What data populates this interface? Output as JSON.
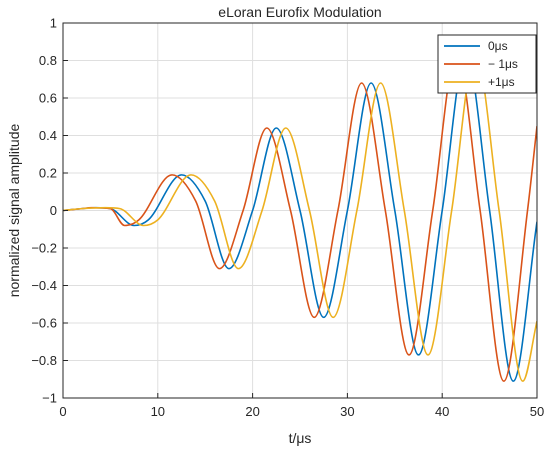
{
  "chart_data": {
    "type": "line",
    "title": "eLoran Eurofix Modulation",
    "xlabel": "t/μs",
    "ylabel": "normalized signal amplitude",
    "xlim": [
      0,
      50
    ],
    "ylim": [
      -1,
      1
    ],
    "x_ticks": [
      0,
      10,
      20,
      30,
      40,
      50
    ],
    "y_ticks": [
      -1,
      -0.8,
      -0.6,
      -0.4,
      -0.2,
      0,
      0.2,
      0.4,
      0.6,
      0.8,
      1
    ],
    "x_tick_labels": [
      "0",
      "10",
      "20",
      "30",
      "40",
      "50"
    ],
    "y_tick_labels": [
      "−1",
      "−0.8",
      "−0.6",
      "−0.4",
      "−0.2",
      "0",
      "0.2",
      "0.4",
      "0.6",
      "0.8",
      "1"
    ],
    "grid": true,
    "legend_position": "top-right",
    "series": [
      {
        "name": "0μs",
        "color": "#0072BD",
        "x": [
          0,
          2,
          3.5,
          5,
          7.5,
          9,
          12.5,
          15,
          17.5,
          20,
          22.5,
          25,
          27.5,
          30,
          32.5,
          35,
          37.5,
          40,
          42.5,
          45,
          47.5,
          50
        ],
        "y": [
          0,
          0.01,
          0.015,
          0.01,
          -0.08,
          -0.05,
          0.19,
          0.05,
          -0.31,
          0.0,
          0.44,
          0.0,
          -0.57,
          0.0,
          0.68,
          0.0,
          -0.77,
          0.0,
          0.84,
          0.0,
          -0.91,
          -0.06
        ]
      },
      {
        "name": "− 1μs",
        "color": "#D95319",
        "x": [
          0,
          2,
          3,
          5,
          6.5,
          8,
          11.5,
          14,
          16.5,
          19,
          21.5,
          24,
          26.5,
          29,
          31.5,
          34,
          36.5,
          39,
          41.5,
          44,
          46.5,
          49,
          50
        ],
        "y": [
          0,
          0.01,
          0.015,
          0.01,
          -0.08,
          -0.05,
          0.19,
          0.05,
          -0.31,
          0.0,
          0.44,
          0.0,
          -0.57,
          0.0,
          0.68,
          0.0,
          -0.77,
          0.0,
          0.84,
          0.0,
          -0.91,
          0.0,
          0.45
        ]
      },
      {
        "name": "+1μs",
        "color": "#EDB120",
        "x": [
          0,
          2,
          4.5,
          6,
          8.5,
          10,
          13.5,
          16,
          18.5,
          21,
          23.5,
          26,
          28.5,
          31,
          33.5,
          36,
          38.5,
          41,
          43.5,
          46,
          48.5,
          50
        ],
        "y": [
          0,
          0.01,
          0.015,
          0.01,
          -0.08,
          -0.05,
          0.19,
          0.05,
          -0.31,
          0.0,
          0.44,
          0.0,
          -0.57,
          0.0,
          0.68,
          0.0,
          -0.77,
          0.0,
          0.84,
          0.0,
          -0.91,
          -0.59
        ]
      }
    ]
  }
}
